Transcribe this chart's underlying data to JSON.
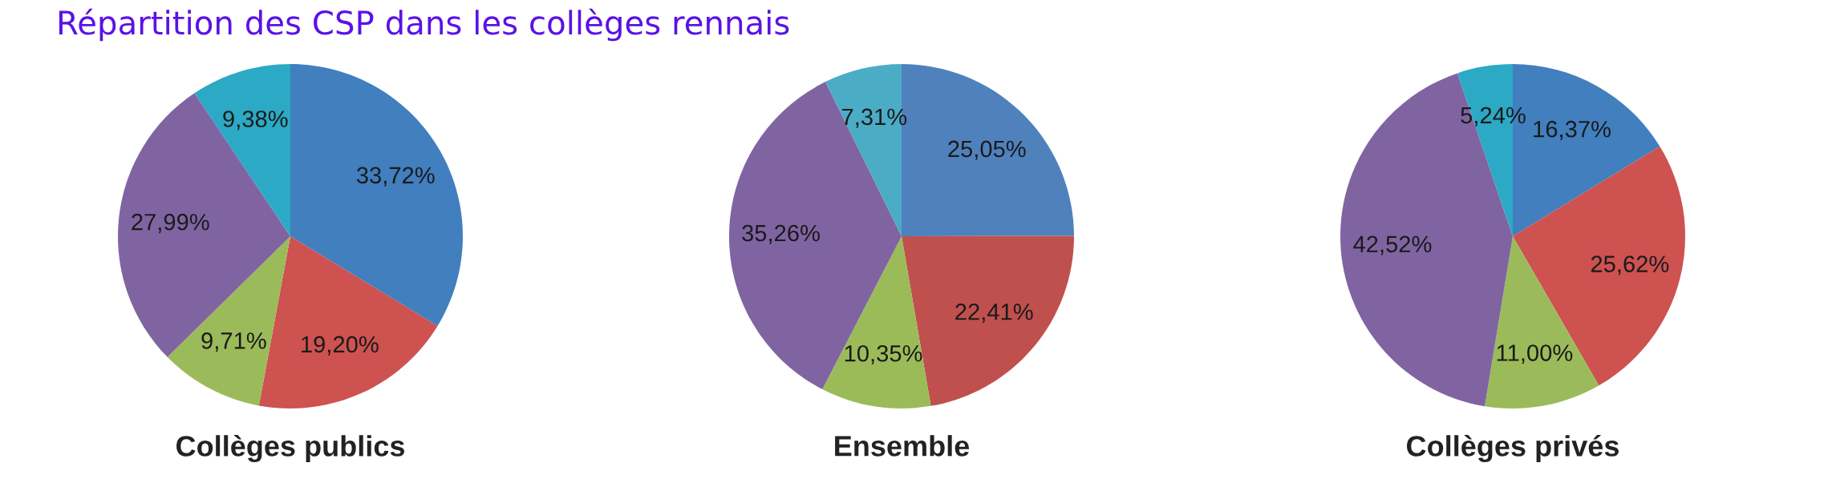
{
  "chart_data": [
    {
      "type": "pie",
      "title": "Répartition des CSP dans les collèges rennais",
      "xlabel": "Collèges publics",
      "categories": [
        null,
        null,
        null,
        null,
        null
      ],
      "values": [
        33.72,
        19.2,
        9.71,
        27.99,
        9.38
      ],
      "value_labels": [
        "33,72%",
        "19,20%",
        "9,71%",
        "27,99%",
        "9,38%"
      ],
      "colors": [
        "#417fbf",
        "#cd5250",
        "#9bbb5a",
        "#8064a2",
        "#2ba9c5"
      ]
    },
    {
      "type": "pie",
      "xlabel": "Ensemble",
      "categories": [
        null,
        null,
        null,
        null,
        null
      ],
      "values": [
        25.05,
        22.41,
        10.35,
        35.26,
        7.31
      ],
      "value_labels": [
        "25,05%",
        "22,41%",
        "10,35%",
        "35,26%",
        "7,31%"
      ],
      "colors": [
        "#4f81bd",
        "#c0504d",
        "#9bbb59",
        "#8064a2",
        "#4bacc6"
      ]
    },
    {
      "type": "pie",
      "xlabel": "Collèges privés",
      "categories": [
        null,
        null,
        null,
        null,
        null
      ],
      "values": [
        16.37,
        25.62,
        11.0,
        42.52,
        5.24
      ],
      "value_labels": [
        "16,37%",
        "25,62%",
        "11,00%",
        "42,52%",
        "5,24%"
      ],
      "colors": [
        "#417fbf",
        "#cd5250",
        "#9bbb5a",
        "#8064a2",
        "#2ba9c5"
      ]
    }
  ]
}
